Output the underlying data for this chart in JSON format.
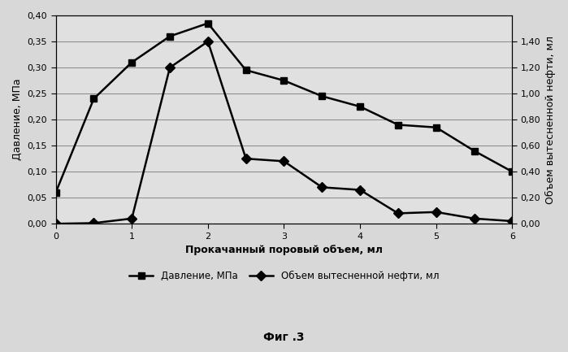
{
  "pressure_x": [
    0,
    0.5,
    1.0,
    1.5,
    2.0,
    2.5,
    3.0,
    3.5,
    4.0,
    4.5,
    5.0,
    5.5,
    6.0
  ],
  "pressure_y": [
    0.06,
    0.24,
    0.31,
    0.36,
    0.385,
    0.295,
    0.275,
    0.245,
    0.225,
    0.19,
    0.185,
    0.14,
    0.1
  ],
  "oil_x": [
    0,
    0.5,
    1.0,
    1.5,
    2.0,
    2.5,
    3.0,
    3.5,
    4.0,
    4.5,
    5.0,
    5.5,
    6.0
  ],
  "oil_y": [
    0.0,
    0.005,
    0.04,
    1.2,
    1.4,
    0.5,
    0.48,
    0.28,
    0.26,
    0.08,
    0.09,
    0.04,
    0.02
  ],
  "xlabel": "Прокачанный поровый объем, мл",
  "ylabel_left": "Давление, МПа",
  "ylabel_right": "Объем вытесненной нефти, мл",
  "legend_pressure": "Давление, МПа",
  "legend_oil": "Объем вытесненной нефти, мл",
  "caption": "Фиг .3",
  "xlim": [
    0,
    6
  ],
  "ylim_left": [
    0,
    0.4
  ],
  "ylim_right": [
    0,
    1.6
  ],
  "yticks_left": [
    0.0,
    0.05,
    0.1,
    0.15,
    0.2,
    0.25,
    0.3,
    0.35,
    0.4
  ],
  "yticks_right": [
    0.0,
    0.2,
    0.4,
    0.6,
    0.8,
    1.0,
    1.2,
    1.4
  ],
  "xticks": [
    0,
    1,
    2,
    3,
    4,
    5,
    6
  ],
  "line_color": "#000000",
  "bg_color": "#f0f0f0",
  "plot_bg_color": "#e8e8e8"
}
